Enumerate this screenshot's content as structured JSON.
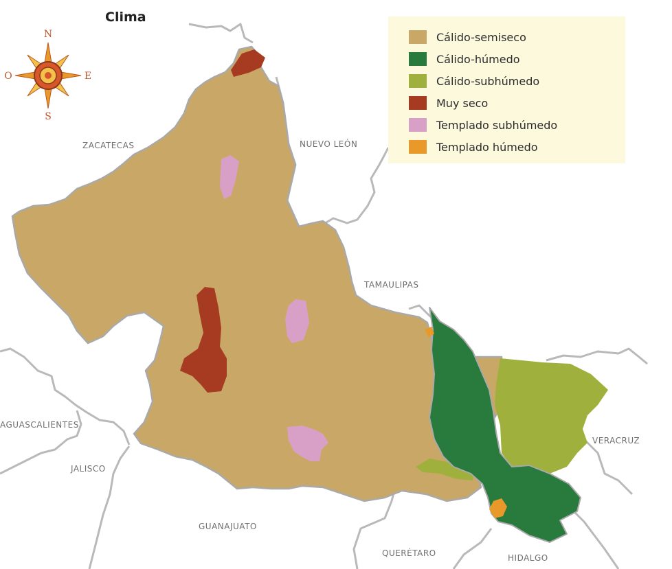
{
  "title": "Clima",
  "legend": [
    {
      "label": "Cálido-semiseco",
      "color": "#c9a867"
    },
    {
      "label": "Cálido-húmedo",
      "color": "#287a3d"
    },
    {
      "label": "Cálido-subhúmedo",
      "color": "#9fb13c"
    },
    {
      "label": "Muy seco",
      "color": "#a63b22"
    },
    {
      "label": "Templado subhúmedo",
      "color": "#d9a0c7"
    },
    {
      "label": "Templado húmedo",
      "color": "#e9982a"
    }
  ],
  "compass": {
    "n": "N",
    "s": "S",
    "e": "E",
    "o": "O"
  },
  "states": {
    "zacatecas": "ZACATECAS",
    "nuevo_leon": "NUEVO LEÓN",
    "tamaulipas": "TAMAULIPAS",
    "aguascalientes": "AGUASCALIENTES",
    "jalisco": "JALISCO",
    "guanajuato": "GUANAJUATO",
    "queretaro": "QUERÉTARO",
    "hidalgo": "HIDALGO",
    "veracruz": "VERACRUZ"
  }
}
